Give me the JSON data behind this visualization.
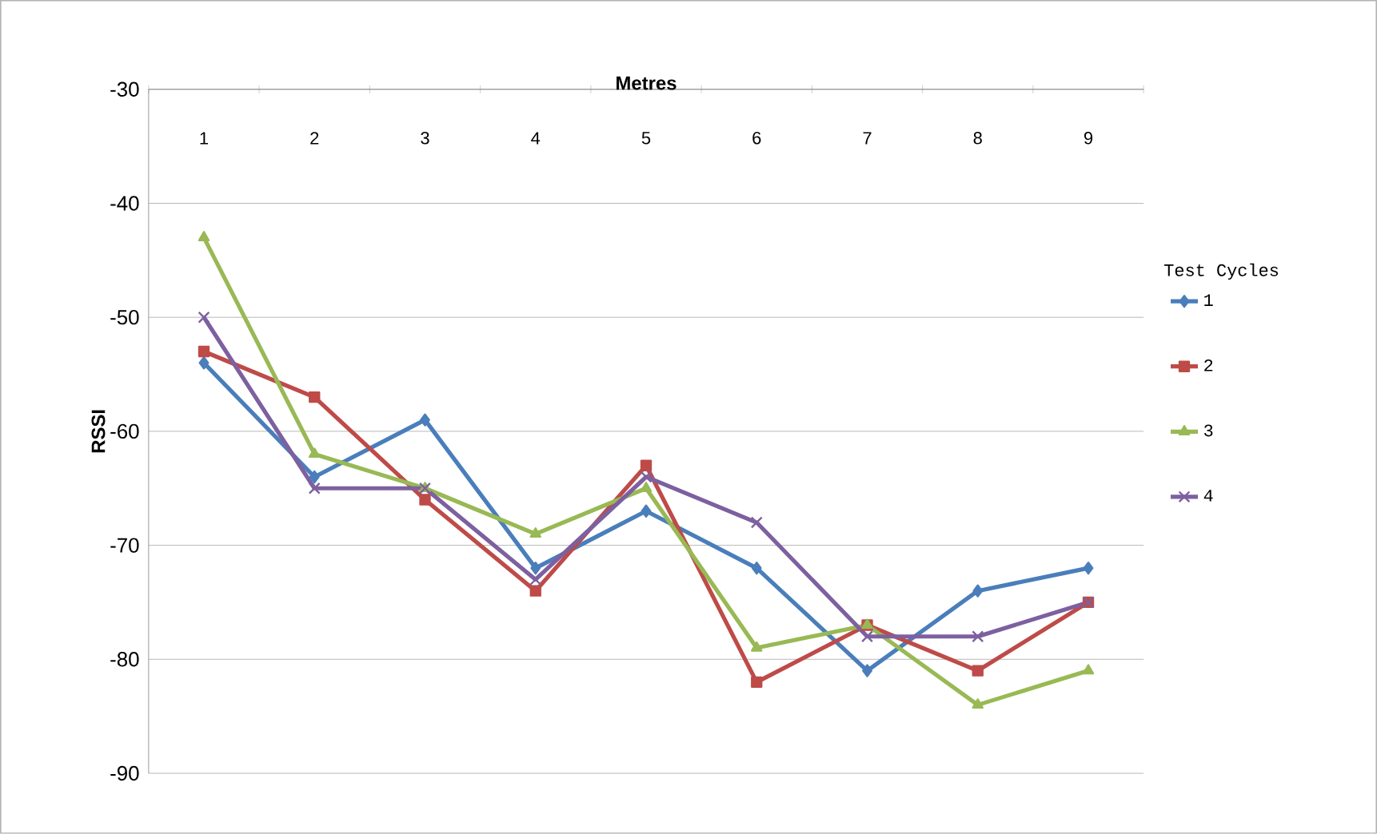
{
  "chart_data": {
    "type": "line",
    "xlabel": "Metres",
    "ylabel": "RSSI",
    "legend_title": "Test Cycles",
    "categories": [
      "1",
      "2",
      "3",
      "4",
      "5",
      "6",
      "7",
      "8",
      "9"
    ],
    "series": [
      {
        "name": "1",
        "color": "#4a7ebb",
        "marker": "diamond",
        "values": [
          -54,
          -64,
          -59,
          -72,
          -67,
          -72,
          -81,
          -74,
          -72
        ]
      },
      {
        "name": "2",
        "color": "#be4b48",
        "marker": "square",
        "values": [
          -53,
          -57,
          -66,
          -74,
          -63,
          -82,
          -77,
          -81,
          -75
        ]
      },
      {
        "name": "3",
        "color": "#98b954",
        "marker": "triangle",
        "values": [
          -43,
          -62,
          -65,
          -69,
          -65,
          -79,
          -77,
          -84,
          -81
        ]
      },
      {
        "name": "4",
        "color": "#7d60a0",
        "marker": "cross",
        "values": [
          -50,
          -65,
          -65,
          -73,
          -64,
          -68,
          -78,
          -78,
          -75
        ]
      }
    ],
    "ylim": [
      -90,
      -30
    ],
    "yticks": [
      -30,
      -40,
      -50,
      -60,
      -70,
      -80,
      -90
    ],
    "grid": "y",
    "legend": "right",
    "line_style": "solid"
  }
}
